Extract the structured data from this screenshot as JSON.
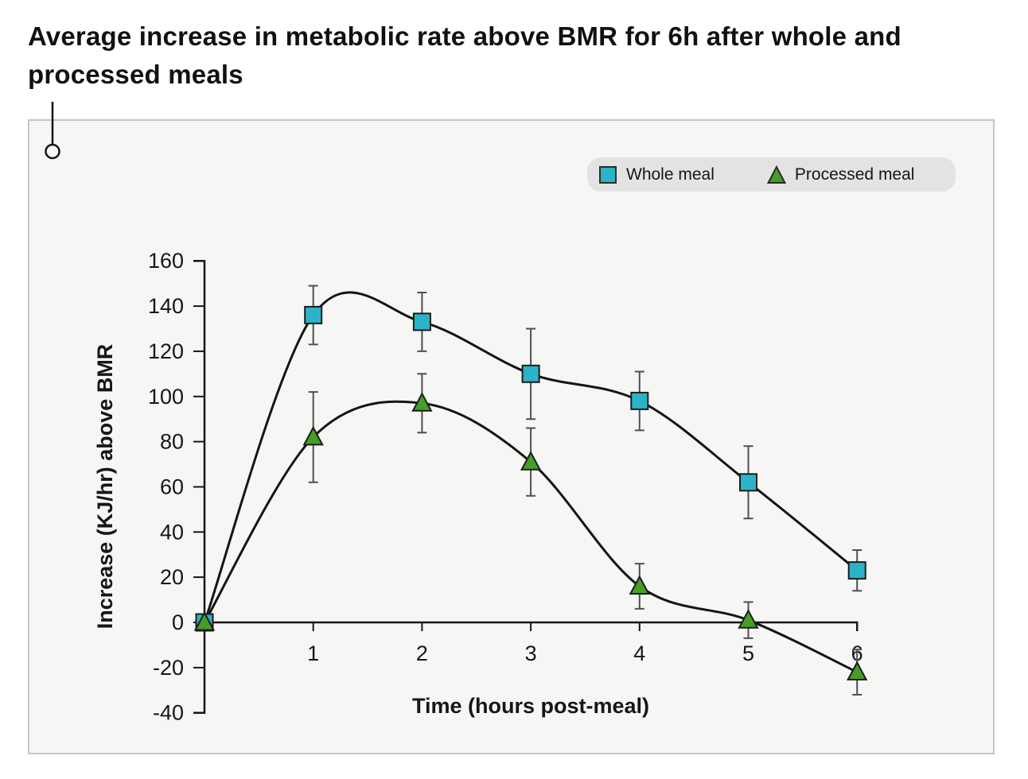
{
  "page": {
    "title": "Average increase in metabolic rate above BMR for 6h after whole and processed meals"
  },
  "chart_data": {
    "type": "line",
    "title": "Average increase in metabolic rate above BMR for 6h after whole and processed meals",
    "xlabel": "Time (hours post-meal)",
    "ylabel": "Increase (KJ/hr) above BMR",
    "x": [
      0,
      1,
      2,
      3,
      4,
      5,
      6
    ],
    "xticks": [
      1,
      2,
      3,
      4,
      5,
      6
    ],
    "ylim": [
      -40,
      160
    ],
    "yticks": [
      160,
      140,
      120,
      100,
      80,
      60,
      40,
      20,
      0,
      -20,
      -40
    ],
    "grid": false,
    "curve_style": "smooth",
    "legend_position": "top-right",
    "line_color": "#151515",
    "error_bar_color": "#4f4f4f",
    "series": [
      {
        "name": "Whole meal",
        "marker": "square",
        "marker_color": "#2bb4c9",
        "values": [
          0,
          136,
          133,
          110,
          98,
          62,
          23
        ],
        "error_bars": [
          0,
          13,
          13,
          20,
          13,
          16,
          9
        ]
      },
      {
        "name": "Processed meal",
        "marker": "triangle",
        "marker_color": "#459e26",
        "values": [
          0,
          82,
          97,
          71,
          16,
          1,
          -22
        ],
        "error_bars": [
          0,
          20,
          13,
          15,
          10,
          8,
          10
        ]
      }
    ]
  },
  "annotation": {
    "pointer": "circle-pin"
  }
}
